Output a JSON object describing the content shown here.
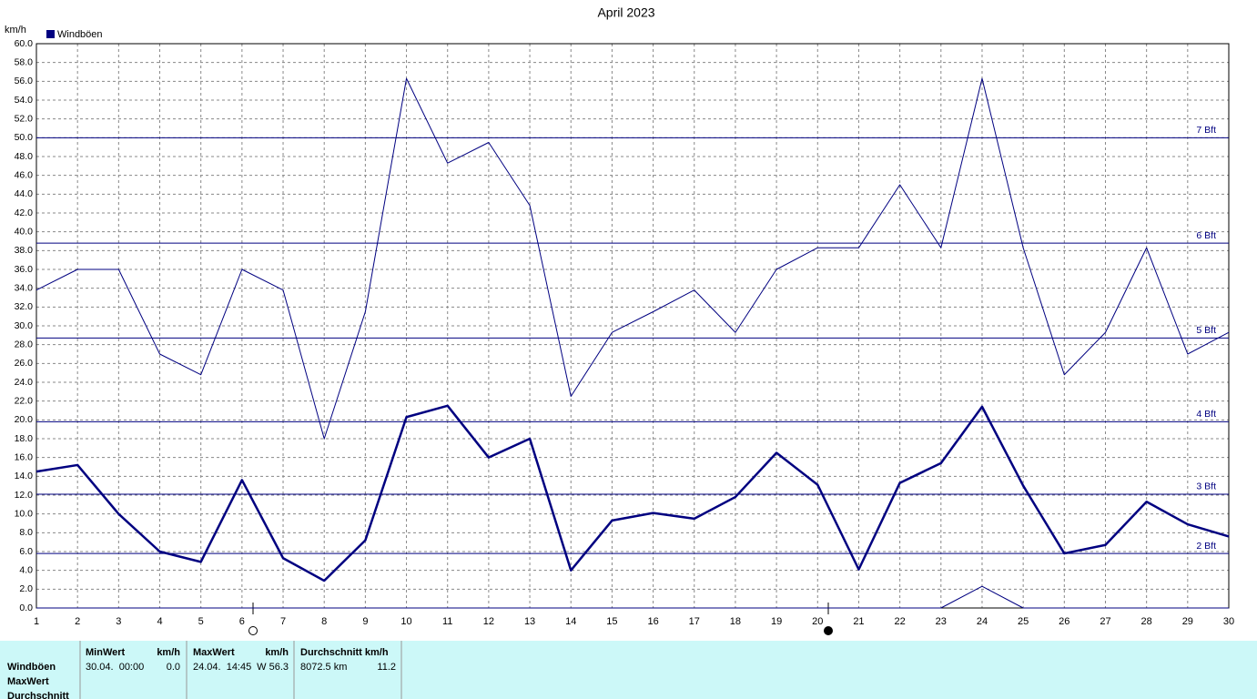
{
  "chart_data": {
    "type": "line",
    "title": "April 2023",
    "ylabel": "km/h",
    "legend": "Windböen",
    "x": [
      1,
      2,
      3,
      4,
      5,
      6,
      7,
      8,
      9,
      10,
      11,
      12,
      13,
      14,
      15,
      16,
      17,
      18,
      19,
      20,
      21,
      22,
      23,
      24,
      25,
      26,
      27,
      28,
      29,
      30
    ],
    "xlim": [
      1,
      30
    ],
    "xticks": [
      1,
      2,
      3,
      4,
      5,
      6,
      7,
      8,
      9,
      10,
      11,
      12,
      13,
      14,
      15,
      16,
      17,
      18,
      19,
      20,
      21,
      22,
      23,
      24,
      25,
      26,
      27,
      28,
      29,
      30
    ],
    "ylim": [
      0,
      60
    ],
    "yticks": [
      {
        "value": 0,
        "label": "0.0"
      },
      {
        "value": 2,
        "label": "2.0"
      },
      {
        "value": 4,
        "label": "4.0"
      },
      {
        "value": 6,
        "label": "6.0"
      },
      {
        "value": 8,
        "label": "8.0"
      },
      {
        "value": 10,
        "label": "10.0"
      },
      {
        "value": 12,
        "label": "12.0"
      },
      {
        "value": 14,
        "label": "14.0"
      },
      {
        "value": 16,
        "label": "16.0"
      },
      {
        "value": 18,
        "label": "18.0"
      },
      {
        "value": 20,
        "label": "20.0"
      },
      {
        "value": 22,
        "label": "22.0"
      },
      {
        "value": 24,
        "label": "24.0"
      },
      {
        "value": 26,
        "label": "26.0"
      },
      {
        "value": 28,
        "label": "28.0"
      },
      {
        "value": 30,
        "label": "30.0"
      },
      {
        "value": 32,
        "label": "32.0"
      },
      {
        "value": 34,
        "label": "34.0"
      },
      {
        "value": 36,
        "label": "36.0"
      },
      {
        "value": 38,
        "label": "38.0"
      },
      {
        "value": 40,
        "label": "40.0"
      },
      {
        "value": 42,
        "label": "42.0"
      },
      {
        "value": 44,
        "label": "44.0"
      },
      {
        "value": 46,
        "label": "46.0"
      },
      {
        "value": 48,
        "label": "48.0"
      },
      {
        "value": 50,
        "label": "50.0"
      },
      {
        "value": 52,
        "label": "52.0"
      },
      {
        "value": 54,
        "label": "54.0"
      },
      {
        "value": 56,
        "label": "56.0"
      },
      {
        "value": 58,
        "label": "58.0"
      },
      {
        "value": 60,
        "label": "60.0"
      }
    ],
    "grid": true,
    "reference_lines": [
      {
        "value": 50.0,
        "label": "7 Bft"
      },
      {
        "value": 38.8,
        "label": "6 Bft"
      },
      {
        "value": 28.7,
        "label": "5 Bft"
      },
      {
        "value": 19.8,
        "label": "4 Bft"
      },
      {
        "value": 12.1,
        "label": "3 Bft"
      },
      {
        "value": 5.8,
        "label": "2 Bft"
      }
    ],
    "series": [
      {
        "color": "#000080",
        "width": 1,
        "values": [
          33.8,
          36.0,
          36.0,
          27.0,
          24.8,
          36.0,
          33.8,
          18.0,
          31.5,
          56.3,
          47.3,
          49.5,
          42.8,
          22.5,
          29.3,
          31.5,
          33.8,
          29.3,
          36.0,
          38.3,
          38.3,
          45.0,
          38.3,
          56.3,
          38.3,
          24.8,
          29.3,
          38.3,
          27.0,
          29.3
        ]
      },
      {
        "color": "#000080",
        "width": 2.5,
        "values": [
          14.5,
          15.2,
          10.0,
          6.0,
          4.9,
          13.6,
          5.3,
          2.9,
          7.2,
          20.3,
          21.5,
          16.0,
          18.0,
          4.0,
          9.3,
          10.1,
          9.5,
          11.8,
          16.5,
          13.1,
          4.1,
          13.3,
          15.4,
          21.4,
          13.0,
          5.8,
          6.7,
          11.3,
          8.9,
          7.6
        ]
      },
      {
        "color": "#000080",
        "width": 1,
        "values": [
          0,
          0,
          0,
          0,
          0,
          0,
          0,
          0,
          0,
          0,
          0,
          0,
          0,
          0,
          0,
          0,
          0,
          0,
          0,
          0,
          0,
          0,
          0,
          2.3,
          0,
          0,
          0,
          0,
          0,
          0
        ]
      }
    ]
  },
  "table": {
    "headers": [
      "MinWert",
      "km/h",
      "MaxWert",
      "km/h",
      "Durchschnitt km/h"
    ],
    "rows": [
      [
        "Windböen",
        "30.04.  00:00",
        "0.0",
        "24.04.  14:45",
        "W 56.3",
        "8072.5 km",
        "11.2"
      ],
      [
        "MaxWert"
      ],
      [
        "Durchschnitt"
      ]
    ]
  }
}
